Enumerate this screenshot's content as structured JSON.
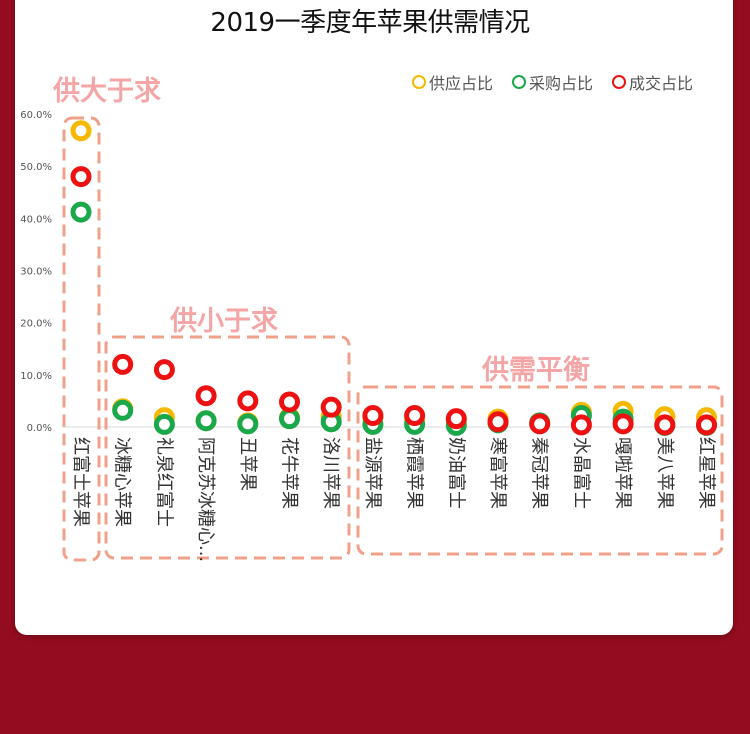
{
  "title": "2019一季度年苹果供需情况",
  "legend": [
    {
      "label": "供应占比",
      "color": "#f7b900"
    },
    {
      "label": "采购占比",
      "color": "#1aa84a"
    },
    {
      "label": "成交占比",
      "color": "#ee1111"
    }
  ],
  "zones": [
    {
      "label": "供大于求"
    },
    {
      "label": "供小于求"
    },
    {
      "label": "供需平衡"
    }
  ],
  "chart_data": {
    "type": "scatter",
    "title": "2019一季度年苹果供需情况",
    "categories": [
      "红富士苹果",
      "冰糖心苹果",
      "礼泉红富士",
      "阿克苏冰糖心...",
      "丑苹果",
      "花牛苹果",
      "洛川苹果",
      "盐源苹果",
      "栖霞苹果",
      "奶油富士",
      "寒富苹果",
      "秦冠苹果",
      "水晶富士",
      "嘎啦苹果",
      "美八苹果",
      "红星苹果"
    ],
    "ytick_labels": [
      "0.0%",
      "10.0%",
      "20.0%",
      "30.0%",
      "40.0%",
      "50.0%",
      "60.0%"
    ],
    "ylim": [
      0,
      60
    ],
    "series": [
      {
        "name": "供应占比",
        "color": "#f7b900",
        "values": [
          56.8,
          3.5,
          1.8,
          1.2,
          0.8,
          1.8,
          2.0,
          1.8,
          1.5,
          1.0,
          1.5,
          0.8,
          2.8,
          3.0,
          2.0,
          1.8
        ]
      },
      {
        "name": "采购占比",
        "color": "#1aa84a",
        "values": [
          41.2,
          3.2,
          0.5,
          1.2,
          0.6,
          1.6,
          1.0,
          0.5,
          0.5,
          0.3,
          0.8,
          0.8,
          2.2,
          1.5,
          0.3,
          0.3
        ]
      },
      {
        "name": "成交占比",
        "color": "#ee1111",
        "values": [
          48.0,
          12.0,
          11.0,
          6.0,
          5.0,
          4.8,
          3.8,
          2.2,
          2.2,
          1.6,
          1.0,
          0.6,
          0.4,
          0.6,
          0.4,
          0.4
        ]
      }
    ]
  }
}
